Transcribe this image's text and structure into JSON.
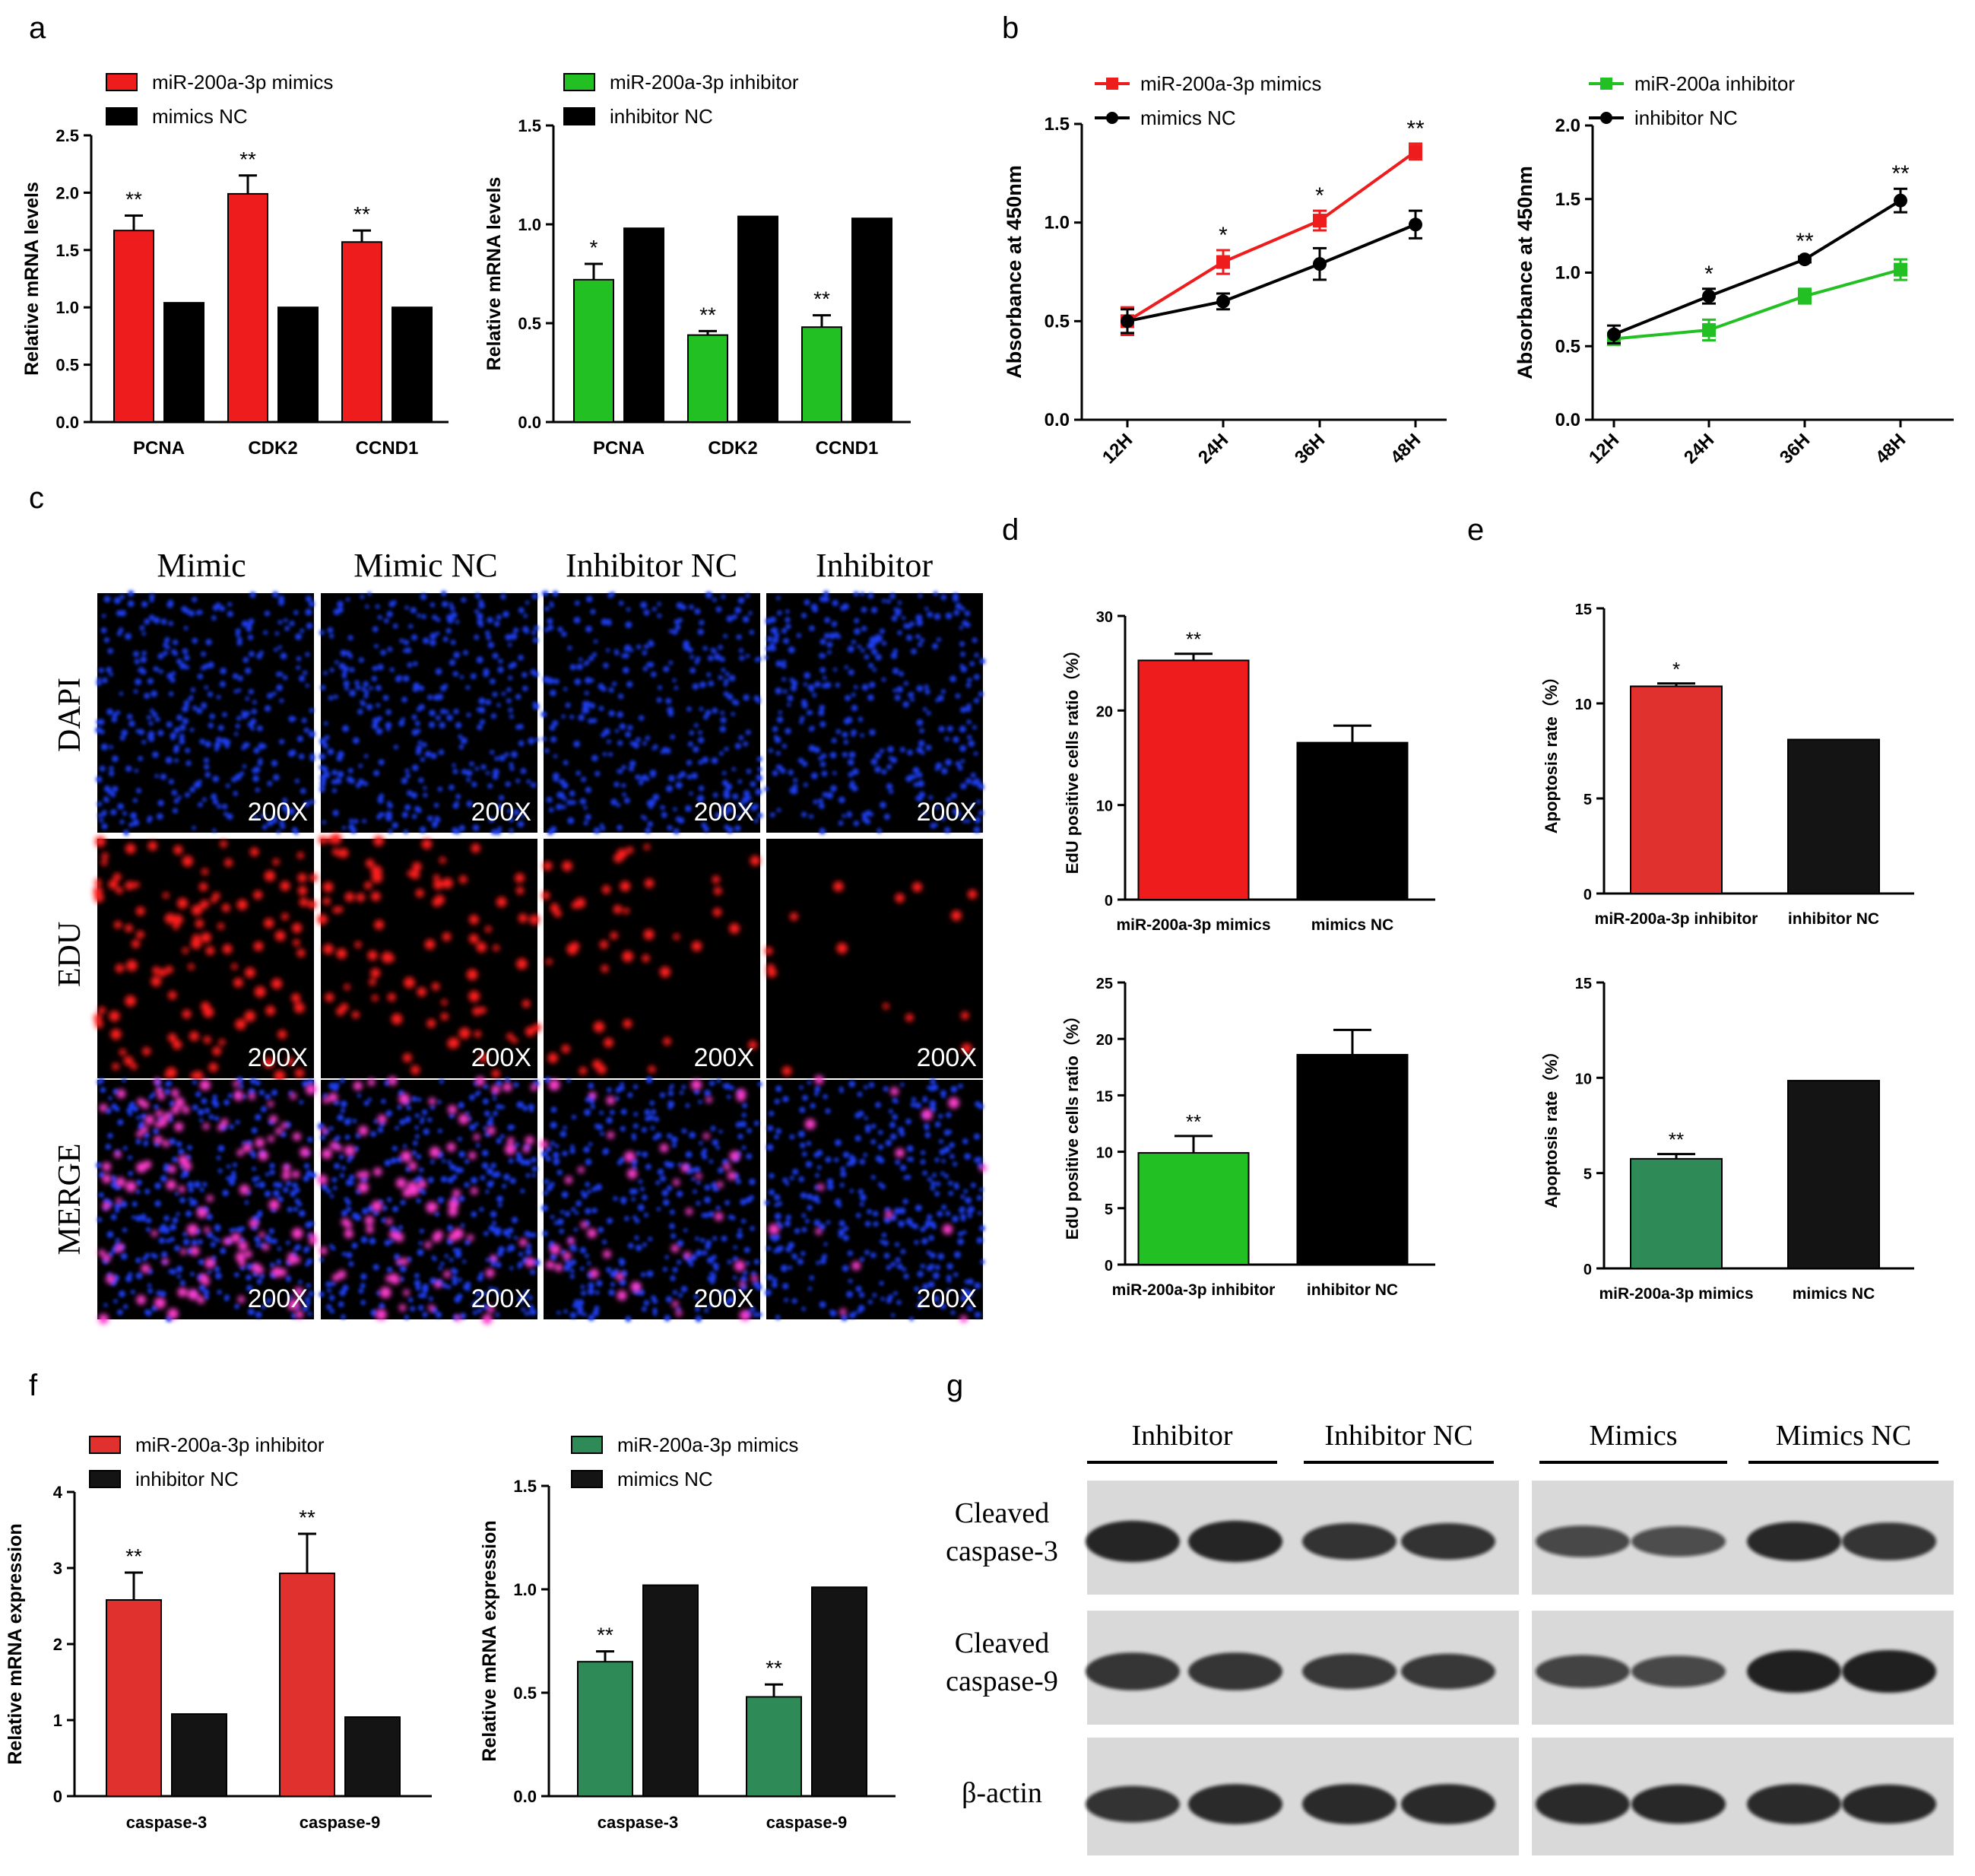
{
  "panel_letters": [
    "a",
    "b",
    "c",
    "d",
    "e",
    "f",
    "g"
  ],
  "colors": {
    "red": "#ee1c1c",
    "green": "#22c022",
    "black": "#000000",
    "dark": "#141414",
    "red_e": "#e0312e",
    "green_e": "#2e8b57",
    "blue_dapi": "#1432e6",
    "red_edu": "#ff2020",
    "magenta": "#e040c0"
  },
  "chart_data": [
    {
      "id": "a1",
      "type": "bar",
      "title": "",
      "xlabel": "",
      "ylabel": "Relative mRNA levels",
      "ylim": [
        0,
        2.5
      ],
      "yticks": [
        "0.0",
        "0.5",
        "1.0",
        "1.5",
        "2.0",
        "2.5"
      ],
      "categories": [
        "PCNA",
        "CDK2",
        "CCND1"
      ],
      "series": [
        {
          "name": "miR-200a-3p mimics",
          "color": "#ee1c1c",
          "values": [
            1.67,
            1.99,
            1.57
          ],
          "errors": [
            0.13,
            0.16,
            0.1
          ]
        },
        {
          "name": "mimics NC",
          "color": "#000000",
          "values": [
            1.04,
            1.0,
            1.0
          ],
          "errors": [
            0,
            0,
            0
          ]
        }
      ],
      "annotations": [
        "**",
        "**",
        "**"
      ]
    },
    {
      "id": "a2",
      "type": "bar",
      "xlabel": "",
      "ylabel": "Relative mRNA levels",
      "ylim": [
        0,
        1.5
      ],
      "yticks": [
        "0.0",
        "0.5",
        "1.0",
        "1.5"
      ],
      "categories": [
        "PCNA",
        "CDK2",
        "CCND1"
      ],
      "series": [
        {
          "name": "miR-200a-3p inhibitor",
          "color": "#22c022",
          "values": [
            0.72,
            0.44,
            0.48
          ],
          "errors": [
            0.08,
            0.02,
            0.06
          ]
        },
        {
          "name": "inhibitor NC",
          "color": "#000000",
          "values": [
            0.98,
            1.04,
            1.03
          ],
          "errors": [
            0,
            0,
            0
          ]
        }
      ],
      "annotations": [
        "*",
        "**",
        "**"
      ]
    },
    {
      "id": "b1",
      "type": "line",
      "ylabel": "Absorbance at 450nm",
      "ylim": [
        0,
        1.5
      ],
      "yticks": [
        "0.0",
        "0.5",
        "1.0",
        "1.5"
      ],
      "categories": [
        "12H",
        "24H",
        "36H",
        "48H"
      ],
      "series": [
        {
          "name": "miR-200a-3p mimics",
          "color": "#ee1c1c",
          "marker": "square",
          "values": [
            0.5,
            0.8,
            1.01,
            1.36
          ],
          "errors": [
            0.07,
            0.06,
            0.05,
            0.04
          ]
        },
        {
          "name": "mimics NC",
          "color": "#000000",
          "marker": "circle",
          "values": [
            0.5,
            0.6,
            0.79,
            0.99
          ],
          "errors": [
            0.06,
            0.04,
            0.08,
            0.07
          ]
        }
      ],
      "annotations": [
        "",
        "*",
        "*",
        "**"
      ]
    },
    {
      "id": "b2",
      "type": "line",
      "ylabel": "Absorbance at 450nm",
      "ylim": [
        0,
        2.0
      ],
      "yticks": [
        "0.0",
        "0.5",
        "1.0",
        "1.5",
        "2.0"
      ],
      "categories": [
        "12H",
        "24H",
        "36H",
        "48H"
      ],
      "series": [
        {
          "name": "miR-200a inhibitor",
          "color": "#22c022",
          "marker": "square",
          "values": [
            0.55,
            0.61,
            0.84,
            1.02
          ],
          "errors": [
            0.04,
            0.07,
            0.05,
            0.07
          ]
        },
        {
          "name": "inhibitor NC",
          "color": "#000000",
          "marker": "circle",
          "values": [
            0.58,
            0.84,
            1.09,
            1.49
          ],
          "errors": [
            0.06,
            0.05,
            0.02,
            0.08
          ]
        }
      ],
      "annotations": [
        "",
        "*",
        "**",
        "**"
      ]
    },
    {
      "id": "d1",
      "type": "bar",
      "ylabel": "EdU positive cells ratio（%）",
      "ylim": [
        0,
        30
      ],
      "yticks": [
        "0",
        "10",
        "20",
        "30"
      ],
      "categories": [
        "miR-200a-3p mimics",
        "mimics NC"
      ],
      "colors": [
        "#ee1c1c",
        "#000000"
      ],
      "values": [
        25.3,
        16.6
      ],
      "errors": [
        0.7,
        1.8
      ],
      "annotations": [
        "**",
        ""
      ]
    },
    {
      "id": "d2",
      "type": "bar",
      "ylabel": "EdU positive cells ratio（%）",
      "ylim": [
        0,
        25
      ],
      "yticks": [
        "0",
        "5",
        "10",
        "15",
        "20",
        "25"
      ],
      "categories": [
        "miR-200a-3p inhibitor",
        "inhibitor NC"
      ],
      "colors": [
        "#22c022",
        "#000000"
      ],
      "values": [
        9.9,
        18.6
      ],
      "errors": [
        1.5,
        2.2
      ],
      "annotations": [
        "**",
        ""
      ]
    },
    {
      "id": "e1",
      "type": "bar",
      "ylabel": "Apoptosis rate（%）",
      "ylim": [
        0,
        15
      ],
      "yticks": [
        "0",
        "5",
        "10",
        "15"
      ],
      "categories": [
        "miR-200a-3p inhibitor",
        "inhibitor NC"
      ],
      "colors": [
        "#e0312e",
        "#141414"
      ],
      "values": [
        10.9,
        8.1
      ],
      "errors": [
        0.15,
        0
      ],
      "annotations": [
        "*",
        ""
      ]
    },
    {
      "id": "e2",
      "type": "bar",
      "ylabel": "Apoptosis rate（%）",
      "ylim": [
        0,
        15
      ],
      "yticks": [
        "0",
        "5",
        "10",
        "15"
      ],
      "categories": [
        "miR-200a-3p mimics",
        "mimics NC"
      ],
      "colors": [
        "#2e8b57",
        "#141414"
      ],
      "values": [
        5.75,
        9.85
      ],
      "errors": [
        0.25,
        0
      ],
      "annotations": [
        "**",
        ""
      ]
    },
    {
      "id": "f1",
      "type": "bar",
      "ylabel": "Relative mRNA expression",
      "ylim": [
        0,
        4
      ],
      "yticks": [
        "0",
        "1",
        "2",
        "3",
        "4"
      ],
      "categories": [
        "caspase-3",
        "caspase-9"
      ],
      "series": [
        {
          "name": "miR-200a-3p inhibitor",
          "color": "#e0312e",
          "values": [
            2.58,
            2.93
          ],
          "errors": [
            0.36,
            0.52
          ]
        },
        {
          "name": "inhibitor NC",
          "color": "#141414",
          "values": [
            1.08,
            1.04
          ],
          "errors": [
            0,
            0
          ]
        }
      ],
      "annotations": [
        "**",
        "**"
      ]
    },
    {
      "id": "f2",
      "type": "bar",
      "ylabel": "Relative mRNA expression",
      "ylim": [
        0,
        1.5
      ],
      "yticks": [
        "0.0",
        "0.5",
        "1.0",
        "1.5"
      ],
      "categories": [
        "caspase-3",
        "caspase-9"
      ],
      "series": [
        {
          "name": "miR-200a-3p mimics",
          "color": "#2e8b57",
          "values": [
            0.65,
            0.48
          ],
          "errors": [
            0.05,
            0.06
          ]
        },
        {
          "name": "mimics NC",
          "color": "#141414",
          "values": [
            1.02,
            1.01
          ],
          "errors": [
            0,
            0
          ]
        }
      ],
      "annotations": [
        "**",
        "**"
      ]
    }
  ],
  "microscopy": {
    "columns": [
      "Mimic",
      "Mimic NC",
      "Inhibitor NC",
      "Inhibitor"
    ],
    "rows": [
      "DAPI",
      "EDU",
      "MERGE"
    ],
    "magnification": "200X"
  },
  "western": {
    "groups": [
      "Inhibitor",
      "Inhibitor NC",
      "Mimics",
      "Mimics NC"
    ],
    "rows": [
      {
        "line1": "Cleaved",
        "line2": "caspase-3"
      },
      {
        "line1": "Cleaved",
        "line2": "caspase-9"
      },
      {
        "line1": "β-actin",
        "line2": ""
      }
    ],
    "band_intensity": [
      [
        0.95,
        0.95,
        0.75,
        0.75,
        0.55,
        0.5,
        0.85,
        0.8
      ],
      [
        0.8,
        0.8,
        0.7,
        0.7,
        0.6,
        0.55,
        1.0,
        1.0
      ],
      [
        0.75,
        0.9,
        0.9,
        0.9,
        0.9,
        0.85,
        0.9,
        0.85
      ]
    ]
  }
}
